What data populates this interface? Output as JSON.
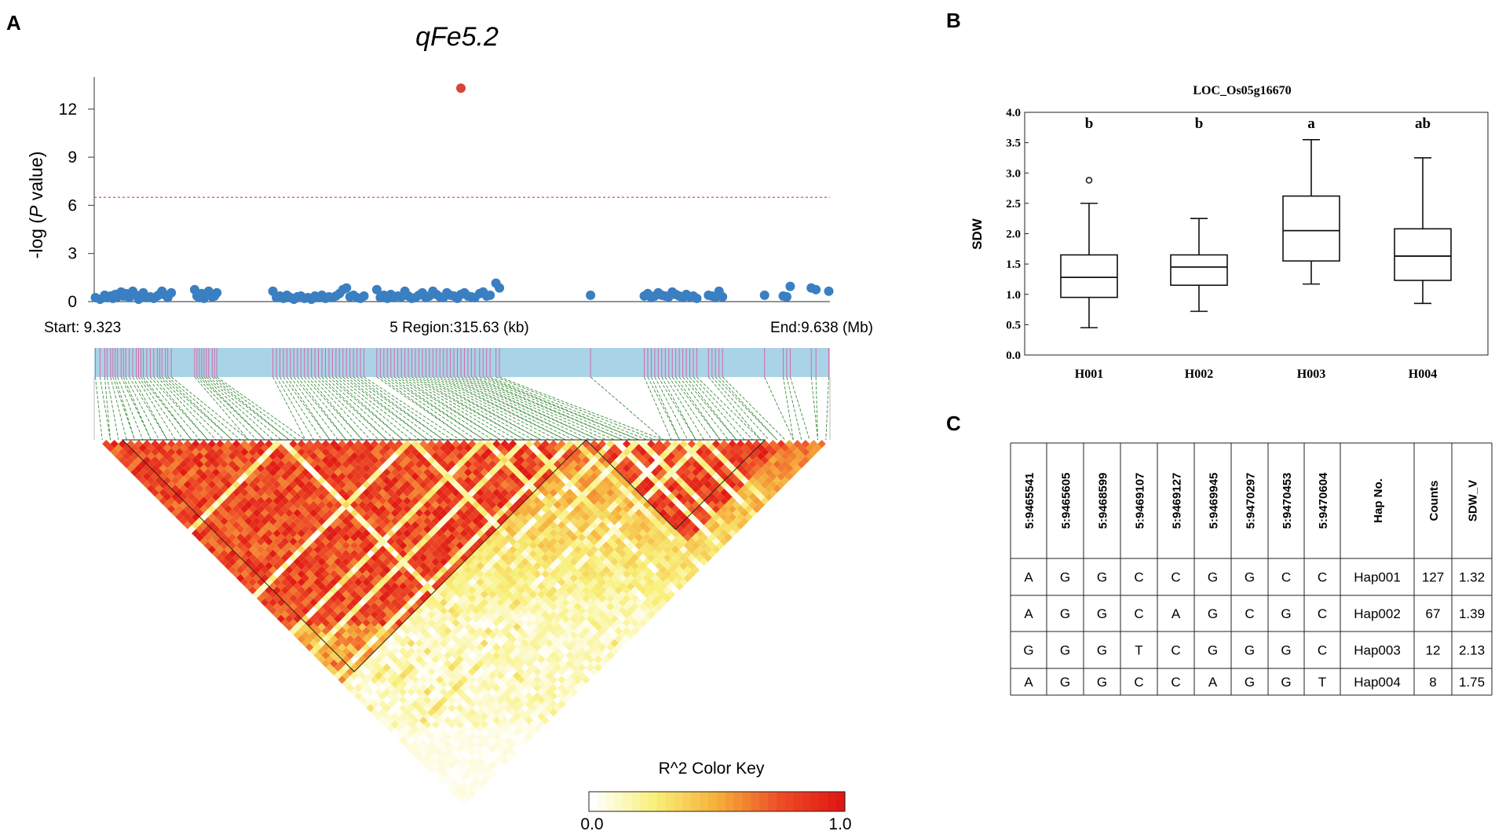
{
  "panels": {
    "a": "A",
    "b": "B",
    "c": "C"
  },
  "colors": {
    "snp": "#3a7fc1",
    "lead_snp": "#d8433a",
    "threshold": "#e05050",
    "ld_bar": "#a9d3e6",
    "ld_link": "#3f8f3f"
  },
  "chart_data": [
    {
      "id": "manhattan",
      "type": "scatter",
      "title": "qFe5.2",
      "ylabel_prefix": "-log (",
      "ylabel_italic": "P",
      "ylabel_suffix": " value)",
      "ylim": [
        0,
        14
      ],
      "yticks": [
        "12",
        "9",
        "6",
        "3",
        "0"
      ],
      "yticks_values": [
        12,
        9,
        6,
        3,
        0
      ],
      "threshold": 6.5,
      "xlim": [
        9.323,
        9.638
      ],
      "start_label": "Start: 9.323",
      "region_label": "5 Region:315.63 (kb)",
      "end_label": "End:9.638 (Mb)",
      "lead_snp": {
        "x": 9.48,
        "y": 13.3
      },
      "points_x": [
        9.3235,
        9.3255,
        9.3275,
        9.3285,
        9.33,
        9.331,
        9.332,
        9.333,
        9.3345,
        9.3355,
        9.3365,
        9.338,
        9.3395,
        9.341,
        9.342,
        9.343,
        9.344,
        9.3455,
        9.347,
        9.3485,
        9.35,
        9.351,
        9.352,
        9.3535,
        9.3545,
        9.356,
        9.366,
        9.367,
        9.368,
        9.369,
        9.37,
        9.371,
        9.372,
        9.3735,
        9.3745,
        9.3755,
        9.3995,
        9.401,
        9.4025,
        9.404,
        9.4055,
        9.407,
        9.4085,
        9.41,
        9.4115,
        9.413,
        9.4145,
        9.416,
        9.4175,
        9.419,
        9.4205,
        9.422,
        9.4235,
        9.425,
        9.4265,
        9.428,
        9.4295,
        9.431,
        9.4325,
        9.434,
        9.4355,
        9.437,
        9.4385,
        9.444,
        9.4455,
        9.447,
        9.4485,
        9.45,
        9.4515,
        9.453,
        9.4545,
        9.456,
        9.4575,
        9.459,
        9.4605,
        9.462,
        9.4635,
        9.465,
        9.4665,
        9.468,
        9.4695,
        9.471,
        9.4725,
        9.474,
        9.4755,
        9.477,
        9.4785,
        9.48,
        9.4815,
        9.483,
        9.4845,
        9.486,
        9.488,
        9.4895,
        9.491,
        9.4925,
        9.495,
        9.4965,
        9.5355,
        9.5585,
        9.56,
        9.5615,
        9.563,
        9.5645,
        9.566,
        9.5675,
        9.569,
        9.5705,
        9.572,
        9.5735,
        9.575,
        9.5765,
        9.578,
        9.5795,
        9.581,
        9.586,
        9.5875,
        9.589,
        9.5905,
        9.592,
        9.61,
        9.618,
        9.6195,
        9.621,
        9.63,
        9.632,
        9.6375
      ],
      "points_y": [
        0.2,
        0.1,
        0.35,
        0.2,
        0.3,
        0.15,
        0.4,
        0.25,
        0.55,
        0.3,
        0.45,
        0.2,
        0.6,
        0.35,
        0.1,
        0.3,
        0.5,
        0.2,
        0.25,
        0.15,
        0.3,
        0.4,
        0.6,
        0.35,
        0.2,
        0.5,
        0.7,
        0.3,
        0.2,
        0.45,
        0.15,
        0.35,
        0.6,
        0.25,
        0.3,
        0.5,
        0.6,
        0.2,
        0.3,
        0.15,
        0.35,
        0.2,
        0.1,
        0.25,
        0.3,
        0.15,
        0.2,
        0.1,
        0.3,
        0.2,
        0.35,
        0.15,
        0.25,
        0.2,
        0.3,
        0.45,
        0.7,
        0.8,
        0.25,
        0.35,
        0.2,
        0.15,
        0.3,
        0.7,
        0.2,
        0.35,
        0.15,
        0.4,
        0.2,
        0.3,
        0.25,
        0.6,
        0.3,
        0.15,
        0.2,
        0.35,
        0.5,
        0.2,
        0.3,
        0.6,
        0.4,
        0.25,
        0.2,
        0.5,
        0.35,
        0.3,
        0.15,
        0.4,
        0.5,
        0.3,
        0.25,
        0.2,
        0.45,
        0.55,
        0.3,
        0.35,
        1.1,
        0.8,
        0.35,
        0.3,
        0.45,
        0.2,
        0.3,
        0.5,
        0.35,
        0.3,
        0.25,
        0.55,
        0.4,
        0.3,
        0.2,
        0.4,
        0.25,
        0.3,
        0.15,
        0.35,
        0.3,
        0.2,
        0.6,
        0.25,
        0.35,
        0.3,
        0.25,
        0.9,
        0.8,
        0.7,
        0.6
      ]
    },
    {
      "id": "ld_heatmap",
      "type": "heatmap",
      "color_key_title": "R^2 Color Key",
      "color_key_min": "0.0",
      "color_key_max": "1.0",
      "range": [
        0.0,
        1.0
      ],
      "n_snps": 90
    },
    {
      "id": "boxplot",
      "type": "box",
      "title": "LOC_Os05g16670",
      "ylabel": "SDW",
      "ylim": [
        0,
        4
      ],
      "yticks": [
        "4.0",
        "3.5",
        "3.0",
        "2.5",
        "2.0",
        "1.5",
        "1.0",
        "0.5",
        "0.0"
      ],
      "yticks_values": [
        4.0,
        3.5,
        3.0,
        2.5,
        2.0,
        1.5,
        1.0,
        0.5,
        0.0
      ],
      "categories": [
        "H001",
        "H002",
        "H003",
        "H004"
      ],
      "letters": [
        "b",
        "b",
        "a",
        "ab"
      ],
      "boxes": [
        {
          "min": 0.45,
          "q1": 0.95,
          "median": 1.28,
          "q3": 1.65,
          "max": 2.5,
          "outliers": [
            2.88
          ]
        },
        {
          "min": 0.72,
          "q1": 1.15,
          "median": 1.45,
          "q3": 1.65,
          "max": 2.25,
          "outliers": []
        },
        {
          "min": 1.17,
          "q1": 1.55,
          "median": 2.05,
          "q3": 2.62,
          "max": 3.55,
          "outliers": []
        },
        {
          "min": 0.85,
          "q1": 1.23,
          "median": 1.63,
          "q3": 2.08,
          "max": 3.25,
          "outliers": []
        }
      ]
    },
    {
      "id": "haplotype_table",
      "type": "table",
      "headers": [
        "5:9465541",
        "5:9465605",
        "5:9468599",
        "5:9469107",
        "5:9469127",
        "5:9469945",
        "5:9470297",
        "5:9470453",
        "5:9470604",
        "Hap No.",
        "Counts",
        "SDW_V"
      ],
      "rows": [
        [
          "A",
          "G",
          "G",
          "C",
          "C",
          "G",
          "G",
          "C",
          "C",
          "Hap001",
          "127",
          "1.32"
        ],
        [
          "A",
          "G",
          "G",
          "C",
          "A",
          "G",
          "C",
          "G",
          "C",
          "Hap002",
          "67",
          "1.39"
        ],
        [
          "G",
          "G",
          "G",
          "T",
          "C",
          "G",
          "G",
          "G",
          "C",
          "Hap003",
          "12",
          "2.13"
        ],
        [
          "A",
          "G",
          "G",
          "C",
          "C",
          "A",
          "G",
          "G",
          "T",
          "Hap004",
          "8",
          "1.75"
        ]
      ]
    }
  ]
}
